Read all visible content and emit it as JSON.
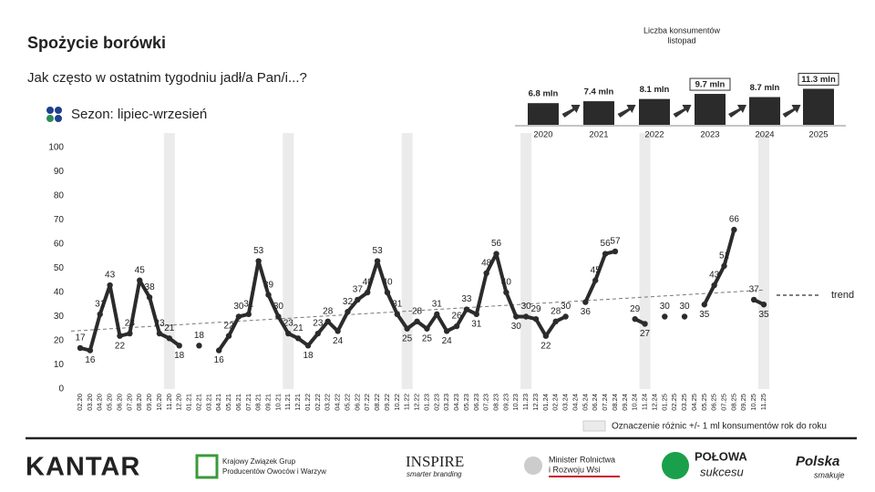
{
  "header": {
    "title": "Spożycie borówki",
    "subtitle": "Jak często w ostatnim tygodniu jadł/a Pan/i...?",
    "season": "Sezon: lipiec-wrzesień"
  },
  "chart_data": [
    {
      "type": "line",
      "categories": [
        "02.20",
        "03.20",
        "04.20",
        "05.20",
        "06.20",
        "07.20",
        "08.20",
        "09.20",
        "10.20",
        "11.20",
        "12.20",
        "01.21",
        "02.21",
        "03.21",
        "04.21",
        "05.21",
        "06.21",
        "07.21",
        "08.21",
        "09.21",
        "10.21",
        "11.21",
        "12.21",
        "01.22",
        "02.22",
        "03.22",
        "04.22",
        "05.22",
        "06.22",
        "07.22",
        "08.22",
        "09.22",
        "10.22",
        "11.22",
        "12.22",
        "01.23",
        "02.23",
        "03.23",
        "04.23",
        "05.23",
        "06.23",
        "07.23",
        "08.23",
        "09.23",
        "10.23",
        "11.23",
        "12.23",
        "01.24",
        "02.24",
        "03.24",
        "04.24",
        "05.24",
        "06.24",
        "07.24",
        "08.24",
        "09.24",
        "10.24",
        "11.24",
        "12.24",
        "01.25",
        "02.25",
        "03.25",
        "04.25",
        "05.25",
        "06.25",
        "07.25",
        "08.25",
        "09.25",
        "10.25",
        "11.25"
      ],
      "values": [
        17,
        16,
        31,
        43,
        22,
        23,
        45,
        38,
        23,
        21,
        18,
        null,
        18,
        null,
        16,
        22,
        30,
        31,
        53,
        39,
        30,
        23,
        21,
        18,
        23,
        28,
        24,
        32,
        37,
        40,
        53,
        40,
        31,
        25,
        28,
        25,
        31,
        24,
        26,
        33,
        31,
        48,
        56,
        40,
        30,
        30,
        29,
        22,
        28,
        30,
        null,
        36,
        45,
        56,
        57,
        null,
        29,
        27,
        null,
        30,
        null,
        30,
        null,
        35,
        43,
        51,
        66,
        null,
        37,
        35
      ],
      "color": "#2b2b2b",
      "ylim": [
        0,
        100
      ],
      "yticks": [
        0,
        10,
        20,
        30,
        40,
        50,
        60,
        70,
        80,
        90,
        100
      ],
      "band_indices": [
        9,
        21,
        33,
        45,
        57,
        69
      ],
      "band_legend": "Oznaczenie różnic +/- 1 ml konsumentów rok do roku",
      "trend": {
        "name": "trend",
        "values": [
          24,
          41
        ]
      }
    },
    {
      "type": "bar",
      "title": "Liczba konsumentów",
      "subtitle": "listopad",
      "categories": [
        "2020",
        "2021",
        "2022",
        "2023",
        "2024",
        "2025"
      ],
      "values": [
        6.8,
        7.4,
        8.1,
        9.7,
        8.7,
        11.3
      ],
      "value_labels": [
        "6.8 mln",
        "7.4 mln",
        "8.1 mln",
        "9.7 mln",
        "8.7 mln",
        "11.3 mln"
      ],
      "boxed": [
        false,
        false,
        false,
        true,
        false,
        true
      ],
      "color": "#2b2b2b"
    }
  ],
  "footer": {
    "logos": [
      "KANTAR",
      "Krajowy Związek Grup",
      "Producentów Owoców i Warzyw",
      "INSPIRE",
      "smarter branding",
      "Minister Rolnictwa",
      "i Rozwoju Wsi",
      "POŁOWA",
      "sukcesu",
      "Polska",
      "smakuje"
    ]
  }
}
